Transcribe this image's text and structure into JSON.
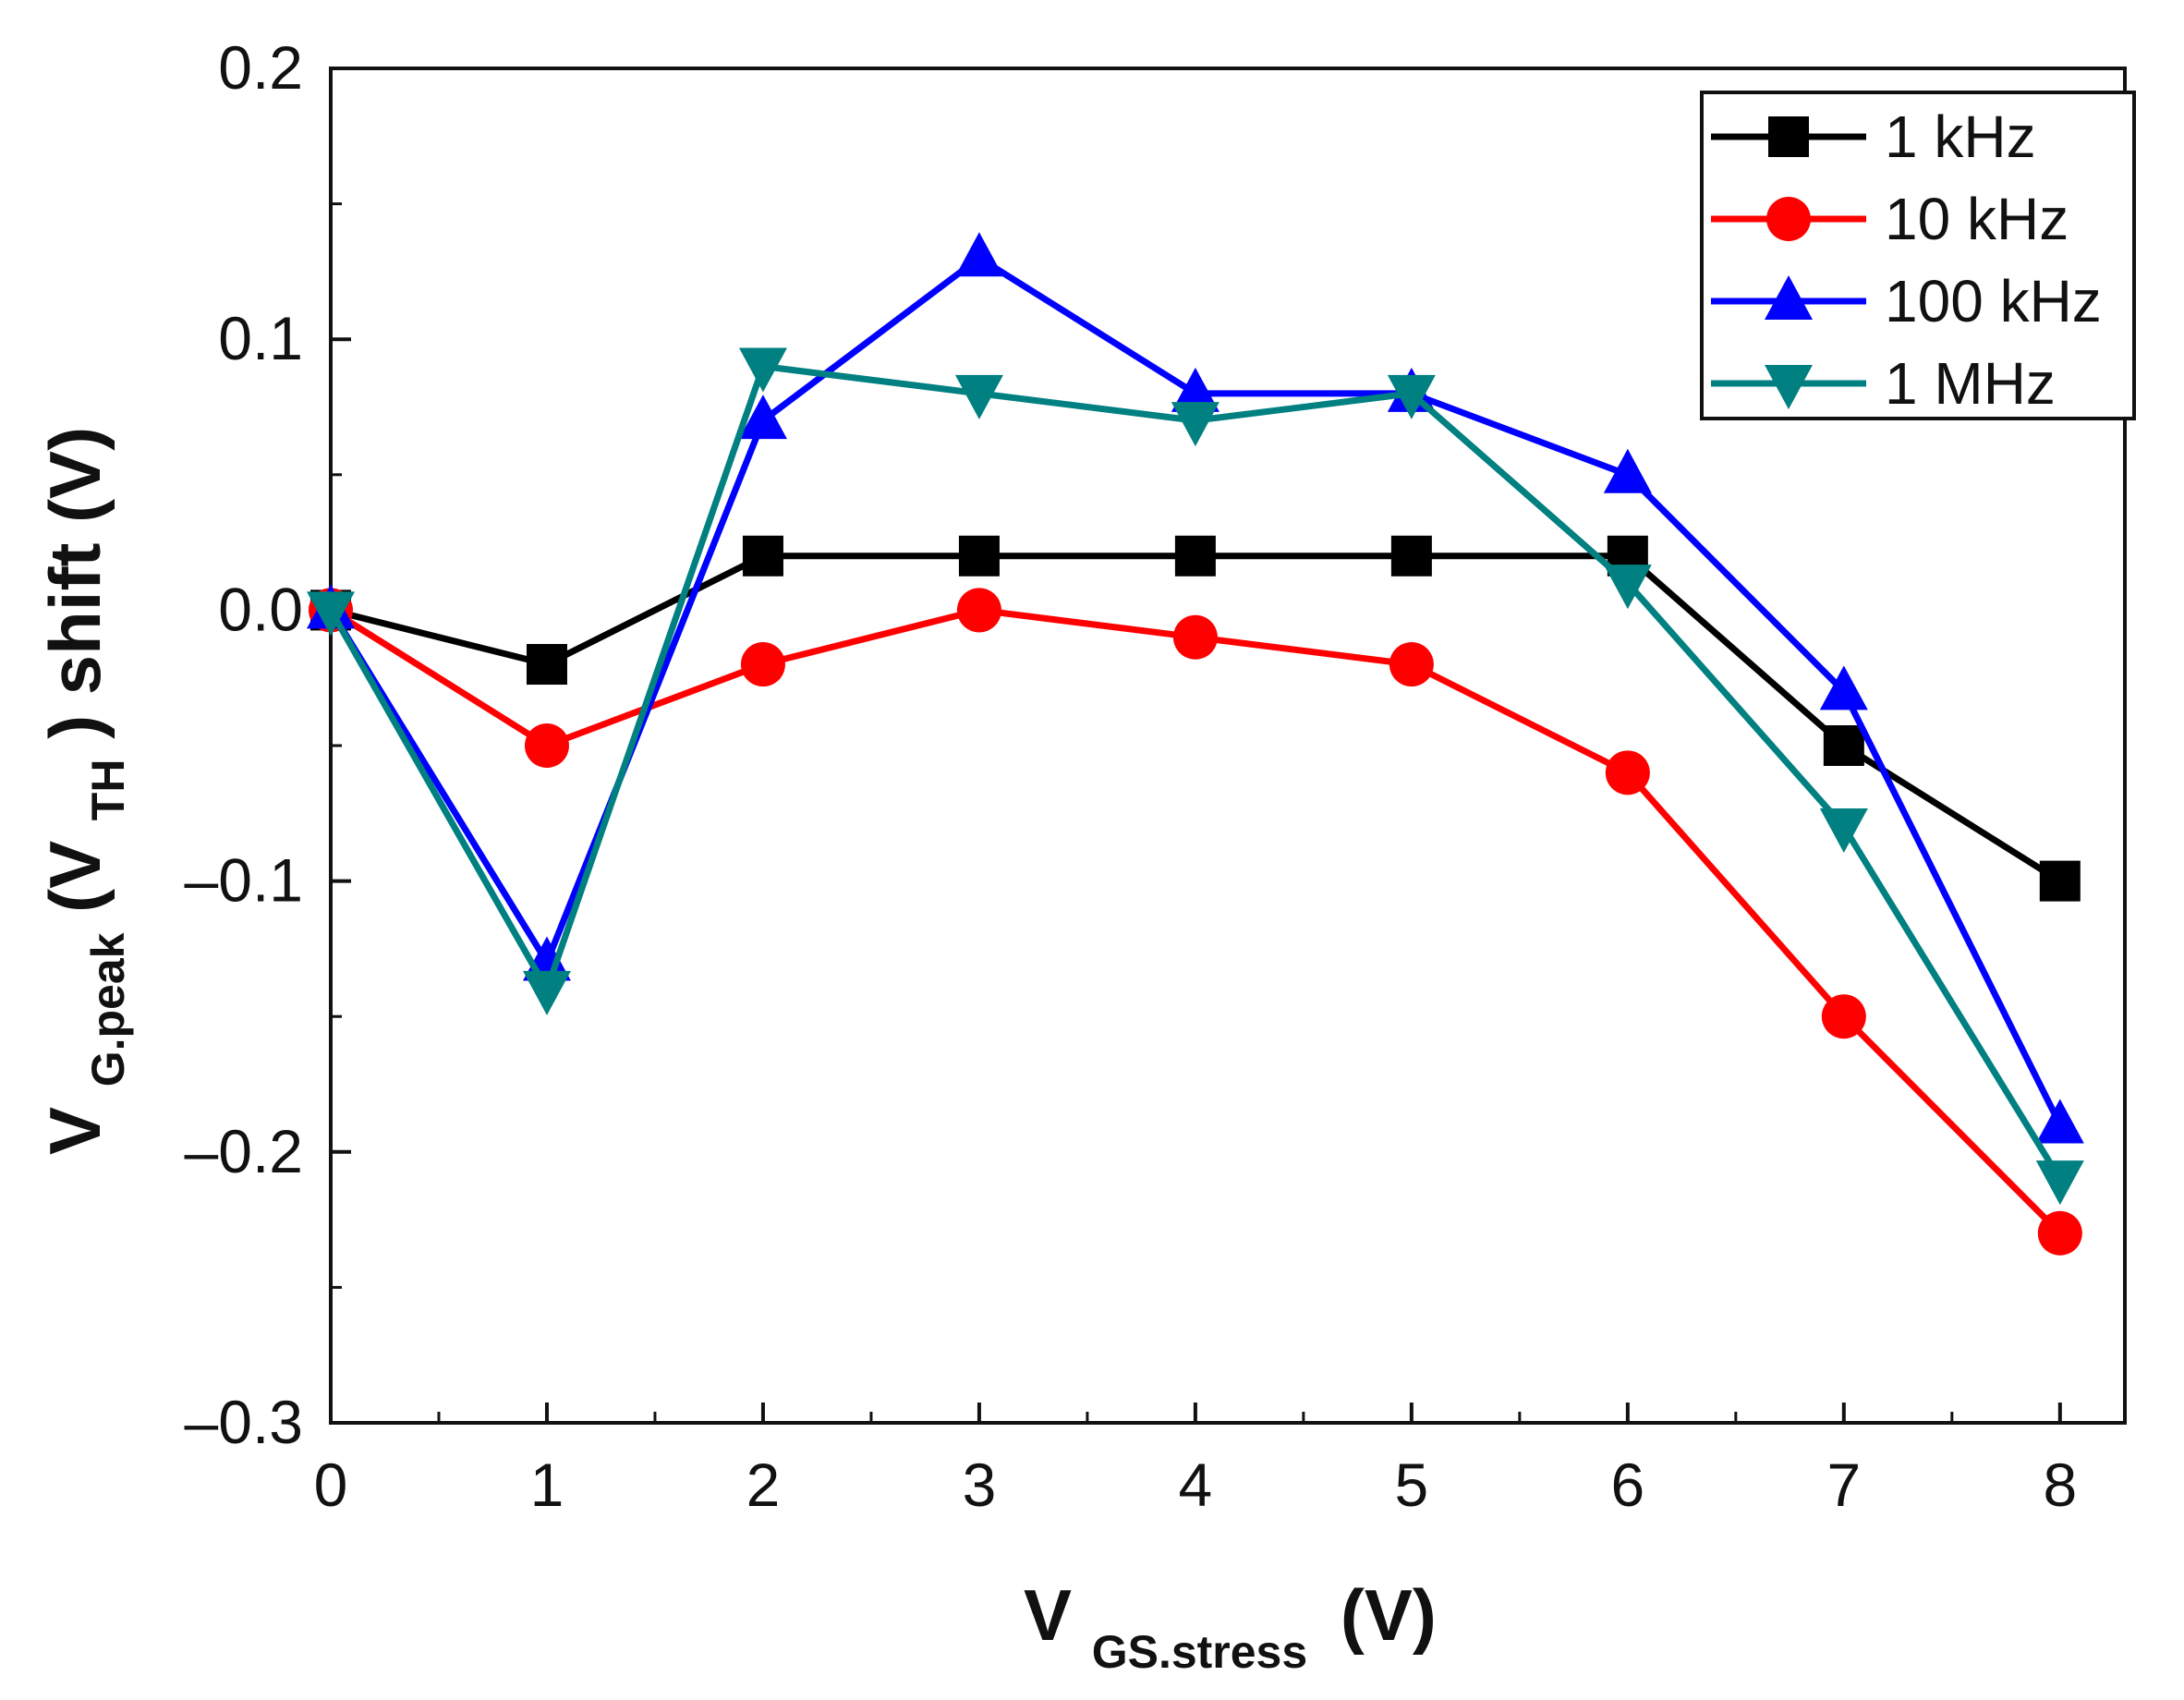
{
  "chart_data": {
    "type": "line",
    "x": [
      0,
      1,
      2,
      3,
      4,
      5,
      6,
      7,
      8
    ],
    "xlim": [
      0,
      8.3
    ],
    "ylim": [
      -0.3,
      0.2
    ],
    "xticks": [
      "0",
      "1",
      "2",
      "3",
      "4",
      "5",
      "6",
      "7",
      "8"
    ],
    "yticks": [
      "0.2",
      "0.1",
      "0.0",
      "–0.1",
      "–0.2",
      "–0.3"
    ],
    "ytick_values": [
      0.2,
      0.1,
      0.0,
      -0.1,
      -0.2,
      -0.3
    ],
    "xlabel": {
      "main": "V",
      "sub": "GS.stress",
      "unit": "(V)"
    },
    "ylabel": {
      "main": "V",
      "sub1": "G.peak",
      "mid": "(V",
      "sub2": "TH",
      "end": ") shift (V)"
    },
    "legend_position": "top-right",
    "series": [
      {
        "name": "1 kHz",
        "color": "#000000",
        "marker": "square",
        "values": [
          0.0,
          -0.02,
          0.02,
          0.02,
          0.02,
          0.02,
          0.02,
          -0.05,
          -0.1
        ]
      },
      {
        "name": "10 kHz",
        "color": "#ff0000",
        "marker": "circle",
        "values": [
          0.0,
          -0.05,
          -0.02,
          0.0,
          -0.01,
          -0.02,
          -0.06,
          -0.15,
          -0.23
        ]
      },
      {
        "name": "100 kHz",
        "color": "#0000ff",
        "marker": "triangle-up",
        "values": [
          0.0,
          -0.13,
          0.07,
          0.13,
          0.08,
          0.08,
          0.05,
          -0.03,
          -0.19
        ]
      },
      {
        "name": "1 MHz",
        "color": "#008080",
        "marker": "triangle-down",
        "values": [
          0.0,
          -0.14,
          0.09,
          0.08,
          0.07,
          0.08,
          0.01,
          -0.08,
          -0.21
        ]
      }
    ]
  }
}
